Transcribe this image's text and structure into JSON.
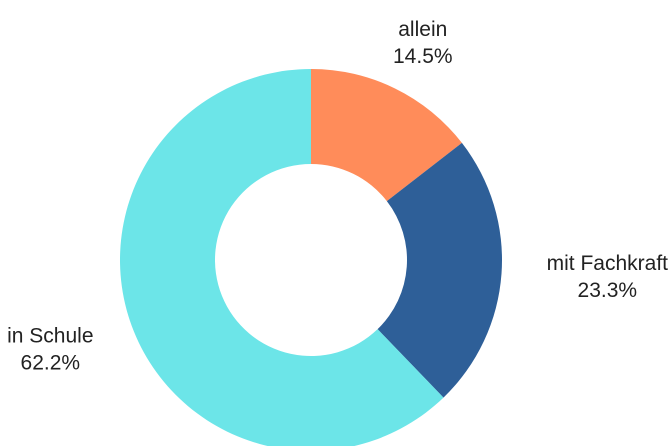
{
  "chart_data": {
    "type": "donut",
    "categories": [
      "allein",
      "mit Fachkraft",
      "in Schule"
    ],
    "values": [
      14.5,
      23.3,
      62.2
    ],
    "value_labels": [
      "14.5%",
      "23.3%",
      "62.2%"
    ],
    "colors": [
      "#ff8c5a",
      "#2e5f98",
      "#6ce5e8"
    ]
  }
}
